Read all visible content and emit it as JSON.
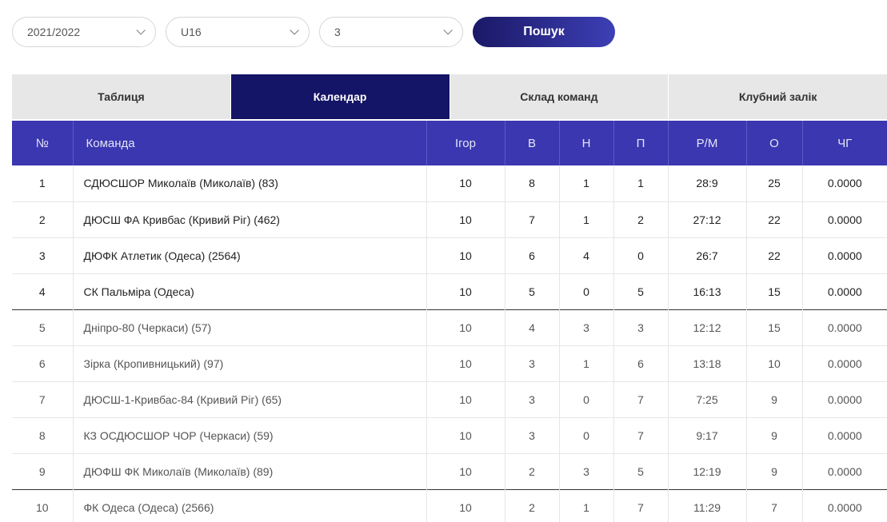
{
  "filters": {
    "season": "2021/2022",
    "age_group": "U16",
    "league": "3",
    "search_label": "Пошук"
  },
  "tabs": [
    {
      "label": "Таблиця",
      "active": false
    },
    {
      "label": "Календар",
      "active": true
    },
    {
      "label": "Склад команд",
      "active": false
    },
    {
      "label": "Клубний залік",
      "active": false
    }
  ],
  "table": {
    "headers": {
      "num": "№",
      "team": "Команда",
      "games": "Ігор",
      "wins": "В",
      "draws": "Н",
      "losses": "П",
      "goals": "Р/М",
      "points": "О",
      "chg": "ЧГ"
    },
    "rows": [
      {
        "num": "1",
        "team": "СДЮСШОР Миколаїв (Миколаїв) (83)",
        "games": "10",
        "wins": "8",
        "draws": "1",
        "losses": "1",
        "goals": "28:9",
        "points": "25",
        "chg": "0.0000"
      },
      {
        "num": "2",
        "team": "ДЮСШ ФА Кривбас (Кривий Ріг) (462)",
        "games": "10",
        "wins": "7",
        "draws": "1",
        "losses": "2",
        "goals": "27:12",
        "points": "22",
        "chg": "0.0000"
      },
      {
        "num": "3",
        "team": "ДЮФК Атлетик (Одеса) (2564)",
        "games": "10",
        "wins": "6",
        "draws": "4",
        "losses": "0",
        "goals": "26:7",
        "points": "22",
        "chg": "0.0000"
      },
      {
        "num": "4",
        "team": "СК Пальміра (Одеса)",
        "games": "10",
        "wins": "5",
        "draws": "0",
        "losses": "5",
        "goals": "16:13",
        "points": "15",
        "chg": "0.0000"
      },
      {
        "num": "5",
        "team": "Дніпро-80 (Черкаси) (57)",
        "games": "10",
        "wins": "4",
        "draws": "3",
        "losses": "3",
        "goals": "12:12",
        "points": "15",
        "chg": "0.0000"
      },
      {
        "num": "6",
        "team": "Зірка (Кропивницький) (97)",
        "games": "10",
        "wins": "3",
        "draws": "1",
        "losses": "6",
        "goals": "13:18",
        "points": "10",
        "chg": "0.0000"
      },
      {
        "num": "7",
        "team": "ДЮСШ-1-Кривбас-84 (Кривий Ріг) (65)",
        "games": "10",
        "wins": "3",
        "draws": "0",
        "losses": "7",
        "goals": "7:25",
        "points": "9",
        "chg": "0.0000"
      },
      {
        "num": "8",
        "team": "КЗ ОСДЮСШОР ЧОР (Черкаси) (59)",
        "games": "10",
        "wins": "3",
        "draws": "0",
        "losses": "7",
        "goals": "9:17",
        "points": "9",
        "chg": "0.0000"
      },
      {
        "num": "9",
        "team": "ДЮФШ ФК Миколаїв (Миколаїв) (89)",
        "games": "10",
        "wins": "2",
        "draws": "3",
        "losses": "5",
        "goals": "12:19",
        "points": "9",
        "chg": "0.0000"
      },
      {
        "num": "10",
        "team": "ФК Одеса (Одеса) (2566)",
        "games": "10",
        "wins": "2",
        "draws": "1",
        "losses": "7",
        "goals": "11:29",
        "points": "7",
        "chg": "0.0000"
      }
    ]
  }
}
